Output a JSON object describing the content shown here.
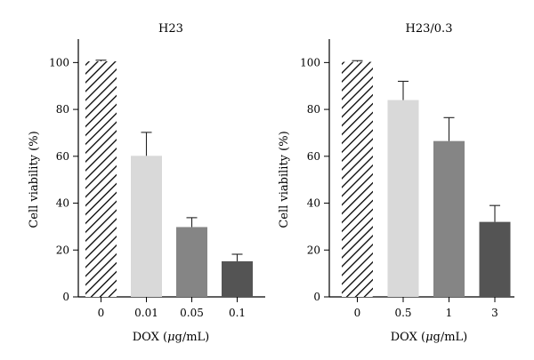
{
  "chart_data": [
    {
      "type": "bar",
      "title": "H23",
      "xlabel_prefix": "DOX (",
      "xlabel_mu": "μ",
      "xlabel_suffix": "g/mL)",
      "ylabel": "Cell viability (%)",
      "ylim": [
        0,
        110
      ],
      "yticks": [
        0,
        20,
        40,
        60,
        80,
        100
      ],
      "categories": [
        "0",
        "0.01",
        "0.05",
        "0.1"
      ],
      "values": [
        100.5,
        60.2,
        29.8,
        15.2
      ],
      "errors": [
        0.5,
        10.0,
        4.0,
        3.0
      ],
      "bar_styles": [
        "hatch",
        "#d9d9d9",
        "#858585",
        "#545454"
      ]
    },
    {
      "type": "bar",
      "title": "H23/0.3",
      "xlabel_prefix": "DOX (",
      "xlabel_mu": "μ",
      "xlabel_suffix": "g/mL)",
      "ylabel": "Cell viability (%)",
      "ylim": [
        0,
        110
      ],
      "yticks": [
        0,
        20,
        40,
        60,
        80,
        100
      ],
      "categories": [
        "0",
        "0.5",
        "1",
        "3"
      ],
      "values": [
        100.3,
        84.0,
        66.5,
        32.0
      ],
      "errors": [
        0.5,
        8.0,
        10.0,
        7.0
      ],
      "bar_styles": [
        "hatch",
        "#d9d9d9",
        "#858585",
        "#545454"
      ]
    }
  ]
}
